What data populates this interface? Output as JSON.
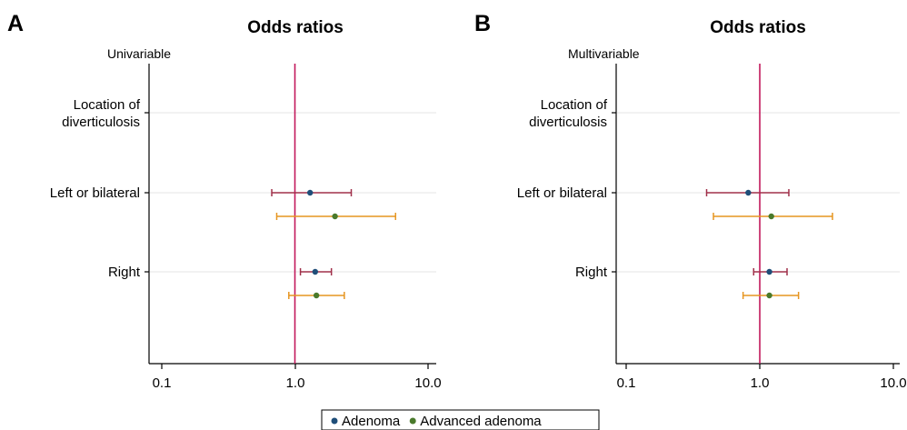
{
  "chart_data": [
    {
      "type": "scatter",
      "panel_label": "A",
      "title": "Odds ratios",
      "subtitle": "Univariable",
      "x_scale": "log",
      "xlim": [
        0.1,
        10.0
      ],
      "xticks": [
        "0.1",
        "1.0",
        "10.0"
      ],
      "reference_line": 1.0,
      "categories": [
        "Location of diverticulosis",
        "Left or bilateral",
        "Right"
      ],
      "category_lines": [
        [
          "Location of",
          "diverticulosis"
        ],
        [
          "Left or bilateral"
        ],
        [
          "Right"
        ]
      ],
      "series": [
        {
          "name": "Adenoma",
          "color": "#1f4e79",
          "ci_color": "#a0304a",
          "points": [
            {
              "category": "Left or bilateral",
              "or": 1.3,
              "low": 0.67,
              "high": 2.65
            },
            {
              "category": "Right",
              "or": 1.42,
              "low": 1.1,
              "high": 1.88
            }
          ]
        },
        {
          "name": "Advanced adenoma",
          "color": "#4a7a2c",
          "ci_color": "#e69520",
          "points": [
            {
              "category": "Left or bilateral",
              "or": 2.0,
              "low": 0.73,
              "high": 5.7
            },
            {
              "category": "Right",
              "or": 1.45,
              "low": 0.9,
              "high": 2.35
            }
          ]
        }
      ]
    },
    {
      "type": "scatter",
      "panel_label": "B",
      "title": "Odds ratios",
      "subtitle": "Multivariable",
      "x_scale": "log",
      "xlim": [
        0.1,
        10.0
      ],
      "xticks": [
        "0.1",
        "1.0",
        "10.0"
      ],
      "reference_line": 1.0,
      "categories": [
        "Location of diverticulosis",
        "Left or bilateral",
        "Right"
      ],
      "category_lines": [
        [
          "Location of",
          "diverticulosis"
        ],
        [
          "Left or bilateral"
        ],
        [
          "Right"
        ]
      ],
      "series": [
        {
          "name": "Adenoma",
          "color": "#1f4e79",
          "ci_color": "#a0304a",
          "points": [
            {
              "category": "Left or bilateral",
              "or": 0.82,
              "low": 0.4,
              "high": 1.65
            },
            {
              "category": "Right",
              "or": 1.18,
              "low": 0.9,
              "high": 1.6
            }
          ]
        },
        {
          "name": "Advanced adenoma",
          "color": "#4a7a2c",
          "ci_color": "#e69520",
          "points": [
            {
              "category": "Left or bilateral",
              "or": 1.22,
              "low": 0.45,
              "high": 3.5
            },
            {
              "category": "Right",
              "or": 1.18,
              "low": 0.75,
              "high": 1.95
            }
          ]
        }
      ]
    }
  ],
  "legend": {
    "items": [
      {
        "label": "Adenoma",
        "color": "#1f4e79"
      },
      {
        "label": "Advanced adenoma",
        "color": "#4a7a2c"
      }
    ],
    "position": "bottom-center"
  },
  "colors": {
    "reference_line": "#c2185b",
    "gridline": "#e6e6e6",
    "axis": "#000000"
  }
}
